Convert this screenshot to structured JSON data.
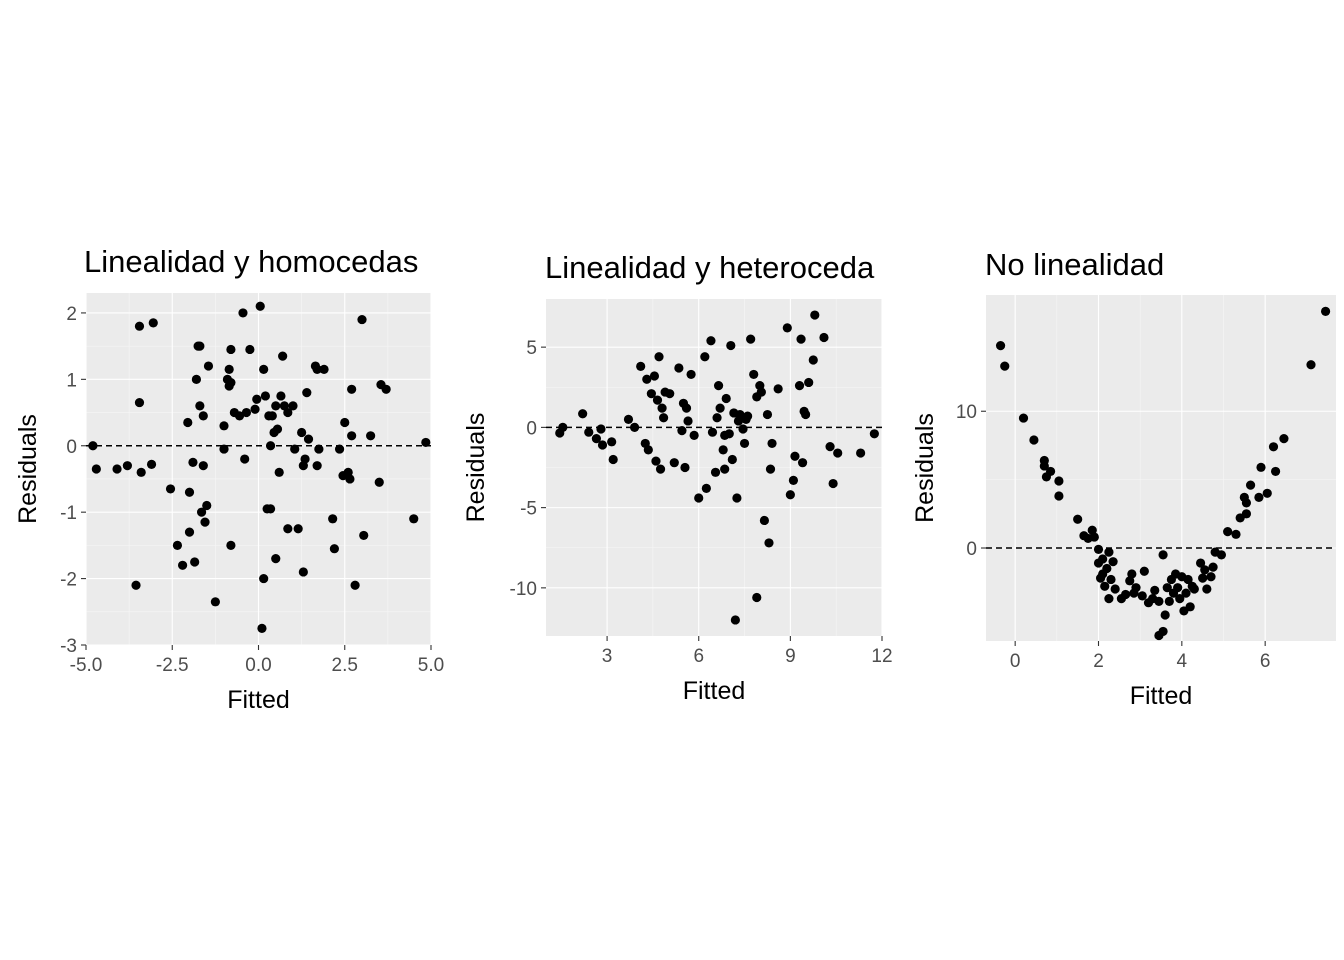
{
  "chart_data": [
    {
      "type": "scatter",
      "title": "Linealidad y homocedas",
      "xlabel": "Fitted",
      "ylabel": "Residuals",
      "xlim": [
        -5.0,
        5.0
      ],
      "ylim": [
        -3.0,
        2.3
      ],
      "xticks": [
        -5.0,
        -2.5,
        0.0,
        2.5,
        5.0
      ],
      "xtick_labels": [
        "-5.0",
        "-2.5",
        "0.0",
        "2.5",
        "5.0"
      ],
      "yticks": [
        -3,
        -2,
        -1,
        0,
        1,
        2
      ],
      "ytick_labels": [
        "-3",
        "-2",
        "-1",
        "0",
        "1",
        "2"
      ],
      "hline": 0,
      "grid": true,
      "points": [
        [
          -4.8,
          0.0
        ],
        [
          -4.7,
          -0.35
        ],
        [
          -4.1,
          -0.35
        ],
        [
          -3.8,
          -0.3
        ],
        [
          -3.55,
          -2.1
        ],
        [
          -3.45,
          0.65
        ],
        [
          -3.45,
          1.8
        ],
        [
          -3.4,
          -0.4
        ],
        [
          -3.05,
          1.85
        ],
        [
          -3.1,
          -0.28
        ],
        [
          -2.55,
          -0.65
        ],
        [
          -2.35,
          -1.5
        ],
        [
          -2.2,
          -1.8
        ],
        [
          -2.05,
          0.35
        ],
        [
          -2.0,
          -0.7
        ],
        [
          -2.0,
          -1.3
        ],
        [
          -1.9,
          -0.25
        ],
        [
          -1.85,
          -1.75
        ],
        [
          -1.8,
          1.0
        ],
        [
          -1.75,
          1.5
        ],
        [
          -1.7,
          0.6
        ],
        [
          -1.7,
          1.5
        ],
        [
          -1.65,
          -1.0
        ],
        [
          -1.6,
          0.45
        ],
        [
          -1.6,
          -0.3
        ],
        [
          -1.55,
          -1.15
        ],
        [
          -1.5,
          -0.9
        ],
        [
          -1.45,
          1.2
        ],
        [
          -1.25,
          -2.35
        ],
        [
          -1.0,
          0.3
        ],
        [
          -1.0,
          -0.05
        ],
        [
          -0.9,
          1.0
        ],
        [
          -0.85,
          0.9
        ],
        [
          -0.8,
          1.45
        ],
        [
          -0.85,
          1.15
        ],
        [
          -0.8,
          0.95
        ],
        [
          -0.8,
          -1.5
        ],
        [
          -0.7,
          0.5
        ],
        [
          -0.55,
          0.45
        ],
        [
          -0.45,
          2.0
        ],
        [
          -0.4,
          -0.2
        ],
        [
          -0.35,
          0.5
        ],
        [
          -0.25,
          1.45
        ],
        [
          -0.1,
          0.55
        ],
        [
          -0.05,
          0.7
        ],
        [
          0.05,
          2.1
        ],
        [
          0.1,
          -2.75
        ],
        [
          0.15,
          1.15
        ],
        [
          0.15,
          -2.0
        ],
        [
          0.2,
          0.75
        ],
        [
          0.25,
          -0.95
        ],
        [
          0.3,
          0.45
        ],
        [
          0.35,
          0.0
        ],
        [
          0.35,
          -0.95
        ],
        [
          0.4,
          0.45
        ],
        [
          0.45,
          0.2
        ],
        [
          0.5,
          -1.7
        ],
        [
          0.5,
          0.6
        ],
        [
          0.55,
          0.25
        ],
        [
          0.6,
          -0.4
        ],
        [
          0.65,
          0.75
        ],
        [
          0.7,
          1.35
        ],
        [
          0.75,
          0.6
        ],
        [
          0.85,
          0.5
        ],
        [
          0.85,
          -1.25
        ],
        [
          1.0,
          0.6
        ],
        [
          1.05,
          -0.05
        ],
        [
          1.15,
          -1.25
        ],
        [
          1.25,
          0.2
        ],
        [
          1.3,
          -0.3
        ],
        [
          1.3,
          -1.9
        ],
        [
          1.35,
          -0.2
        ],
        [
          1.4,
          0.8
        ],
        [
          1.45,
          0.1
        ],
        [
          1.65,
          1.2
        ],
        [
          1.7,
          -0.3
        ],
        [
          1.7,
          1.15
        ],
        [
          1.75,
          -0.05
        ],
        [
          1.9,
          1.15
        ],
        [
          2.15,
          -1.1
        ],
        [
          2.2,
          -1.55
        ],
        [
          2.35,
          -0.05
        ],
        [
          2.45,
          -0.45
        ],
        [
          2.5,
          0.35
        ],
        [
          2.6,
          -0.4
        ],
        [
          2.65,
          -0.5
        ],
        [
          2.7,
          0.15
        ],
        [
          2.7,
          0.85
        ],
        [
          2.8,
          -2.1
        ],
        [
          3.0,
          1.9
        ],
        [
          3.05,
          -1.35
        ],
        [
          3.25,
          0.15
        ],
        [
          3.5,
          -0.55
        ],
        [
          3.55,
          0.92
        ],
        [
          3.7,
          0.85
        ],
        [
          4.5,
          -1.1
        ],
        [
          4.85,
          0.05
        ]
      ]
    },
    {
      "type": "scatter",
      "title": "Linealidad y heteroceda",
      "xlabel": "Fitted",
      "ylabel": "Residuals",
      "xlim": [
        1.0,
        12.0
      ],
      "ylim": [
        -13.0,
        8.0
      ],
      "xticks": [
        3,
        6,
        9,
        12
      ],
      "xtick_labels": [
        "3",
        "6",
        "9",
        "12"
      ],
      "yticks": [
        -10,
        -5,
        0,
        5
      ],
      "ytick_labels": [
        "-10",
        "-5",
        "0",
        "5"
      ],
      "hline": 0,
      "grid": true,
      "points": [
        [
          1.45,
          -0.35
        ],
        [
          1.55,
          0.0
        ],
        [
          2.2,
          0.85
        ],
        [
          2.4,
          -0.3
        ],
        [
          2.65,
          -0.7
        ],
        [
          2.8,
          -0.1
        ],
        [
          2.85,
          -1.1
        ],
        [
          3.2,
          -2.0
        ],
        [
          3.15,
          -0.9
        ],
        [
          3.7,
          0.5
        ],
        [
          3.9,
          0.0
        ],
        [
          4.1,
          3.8
        ],
        [
          4.25,
          -1.0
        ],
        [
          4.3,
          3.0
        ],
        [
          4.35,
          -1.4
        ],
        [
          4.45,
          2.1
        ],
        [
          4.55,
          3.2
        ],
        [
          4.6,
          -2.1
        ],
        [
          4.65,
          1.7
        ],
        [
          4.7,
          4.4
        ],
        [
          4.75,
          -2.6
        ],
        [
          4.8,
          1.2
        ],
        [
          4.85,
          0.6
        ],
        [
          4.9,
          2.2
        ],
        [
          5.05,
          2.1
        ],
        [
          5.2,
          -2.2
        ],
        [
          5.35,
          3.7
        ],
        [
          5.45,
          -0.2
        ],
        [
          5.5,
          1.5
        ],
        [
          5.55,
          -2.5
        ],
        [
          5.6,
          1.2
        ],
        [
          5.65,
          0.4
        ],
        [
          5.75,
          3.3
        ],
        [
          5.85,
          -0.5
        ],
        [
          6.0,
          -4.4
        ],
        [
          6.2,
          4.4
        ],
        [
          6.25,
          -3.8
        ],
        [
          6.4,
          5.4
        ],
        [
          6.45,
          -0.3
        ],
        [
          6.55,
          -2.8
        ],
        [
          6.6,
          0.6
        ],
        [
          6.65,
          2.6
        ],
        [
          6.7,
          1.2
        ],
        [
          6.8,
          -1.4
        ],
        [
          6.85,
          -0.5
        ],
        [
          6.85,
          -2.6
        ],
        [
          6.9,
          1.8
        ],
        [
          7.0,
          -0.4
        ],
        [
          7.05,
          5.1
        ],
        [
          7.1,
          -2.0
        ],
        [
          7.15,
          0.9
        ],
        [
          7.2,
          -12.0
        ],
        [
          7.25,
          -4.4
        ],
        [
          7.3,
          0.4
        ],
        [
          7.35,
          0.8
        ],
        [
          7.45,
          -0.1
        ],
        [
          7.5,
          -1.0
        ],
        [
          7.55,
          0.5
        ],
        [
          7.6,
          0.7
        ],
        [
          7.7,
          5.5
        ],
        [
          7.8,
          3.3
        ],
        [
          7.9,
          -10.6
        ],
        [
          7.9,
          1.9
        ],
        [
          8.0,
          2.6
        ],
        [
          8.05,
          2.2
        ],
        [
          8.15,
          -5.8
        ],
        [
          8.25,
          0.8
        ],
        [
          8.3,
          -7.2
        ],
        [
          8.35,
          -2.6
        ],
        [
          8.4,
          -1.0
        ],
        [
          8.6,
          2.4
        ],
        [
          8.9,
          6.2
        ],
        [
          9.0,
          -4.2
        ],
        [
          9.1,
          -3.3
        ],
        [
          9.15,
          -1.8
        ],
        [
          9.3,
          2.6
        ],
        [
          9.35,
          5.5
        ],
        [
          9.4,
          -2.2
        ],
        [
          9.45,
          1.0
        ],
        [
          9.5,
          0.8
        ],
        [
          9.6,
          2.8
        ],
        [
          9.75,
          4.2
        ],
        [
          9.8,
          7.0
        ],
        [
          10.1,
          5.6
        ],
        [
          10.3,
          -1.2
        ],
        [
          10.4,
          -3.5
        ],
        [
          10.55,
          -1.6
        ],
        [
          11.3,
          -1.6
        ],
        [
          11.75,
          -0.4
        ]
      ]
    },
    {
      "type": "scatter",
      "title": "No linealidad",
      "xlabel": "Fitted",
      "ylabel": "Residuals",
      "xlim": [
        -0.7,
        7.7
      ],
      "ylim": [
        -6.8,
        18.5
      ],
      "xticks": [
        0,
        2,
        4,
        6
      ],
      "xtick_labels": [
        "0",
        "2",
        "4",
        "6"
      ],
      "yticks": [
        0,
        10
      ],
      "ytick_labels": [
        "0",
        "10"
      ],
      "hline": 0,
      "grid": true,
      "points": [
        [
          -0.35,
          14.8
        ],
        [
          -0.25,
          13.3
        ],
        [
          0.2,
          9.5
        ],
        [
          0.45,
          7.9
        ],
        [
          0.7,
          6.4
        ],
        [
          0.7,
          6.0
        ],
        [
          0.75,
          5.2
        ],
        [
          0.85,
          5.6
        ],
        [
          1.05,
          3.8
        ],
        [
          1.05,
          4.9
        ],
        [
          1.5,
          2.1
        ],
        [
          1.65,
          0.9
        ],
        [
          1.75,
          0.7
        ],
        [
          1.85,
          1.3
        ],
        [
          1.9,
          0.8
        ],
        [
          2.0,
          -0.1
        ],
        [
          2.0,
          -1.1
        ],
        [
          2.05,
          -2.2
        ],
        [
          2.1,
          -0.8
        ],
        [
          2.1,
          -1.9
        ],
        [
          2.15,
          -2.8
        ],
        [
          2.2,
          -1.5
        ],
        [
          2.25,
          -0.3
        ],
        [
          2.25,
          -3.7
        ],
        [
          2.3,
          -2.3
        ],
        [
          2.35,
          -1.0
        ],
        [
          2.4,
          -3.0
        ],
        [
          2.55,
          -3.7
        ],
        [
          2.65,
          -3.4
        ],
        [
          2.75,
          -2.4
        ],
        [
          2.8,
          -1.9
        ],
        [
          2.85,
          -3.3
        ],
        [
          2.9,
          -2.9
        ],
        [
          3.05,
          -3.5
        ],
        [
          3.1,
          -1.7
        ],
        [
          3.2,
          -4.0
        ],
        [
          3.3,
          -3.7
        ],
        [
          3.35,
          -3.1
        ],
        [
          3.45,
          -3.9
        ],
        [
          3.45,
          -6.4
        ],
        [
          3.55,
          -0.5
        ],
        [
          3.55,
          -6.1
        ],
        [
          3.6,
          -4.9
        ],
        [
          3.65,
          -2.9
        ],
        [
          3.7,
          -3.9
        ],
        [
          3.75,
          -2.3
        ],
        [
          3.8,
          -3.3
        ],
        [
          3.85,
          -1.9
        ],
        [
          3.9,
          -2.9
        ],
        [
          3.95,
          -3.7
        ],
        [
          4.0,
          -2.1
        ],
        [
          4.05,
          -4.6
        ],
        [
          4.1,
          -3.3
        ],
        [
          4.15,
          -2.3
        ],
        [
          4.2,
          -4.3
        ],
        [
          4.25,
          -2.8
        ],
        [
          4.3,
          -3.0
        ],
        [
          4.45,
          -1.1
        ],
        [
          4.5,
          -2.2
        ],
        [
          4.55,
          -1.6
        ],
        [
          4.6,
          -3.0
        ],
        [
          4.7,
          -2.1
        ],
        [
          4.75,
          -1.4
        ],
        [
          4.8,
          -0.3
        ],
        [
          4.95,
          -0.5
        ],
        [
          5.1,
          1.2
        ],
        [
          5.3,
          1.0
        ],
        [
          5.4,
          2.2
        ],
        [
          5.5,
          3.7
        ],
        [
          5.55,
          3.3
        ],
        [
          5.55,
          2.5
        ],
        [
          5.65,
          4.6
        ],
        [
          5.85,
          3.7
        ],
        [
          5.9,
          5.9
        ],
        [
          6.05,
          4.0
        ],
        [
          6.2,
          7.4
        ],
        [
          6.25,
          5.6
        ],
        [
          6.45,
          8.0
        ],
        [
          7.1,
          13.4
        ],
        [
          7.45,
          17.3
        ]
      ]
    }
  ]
}
